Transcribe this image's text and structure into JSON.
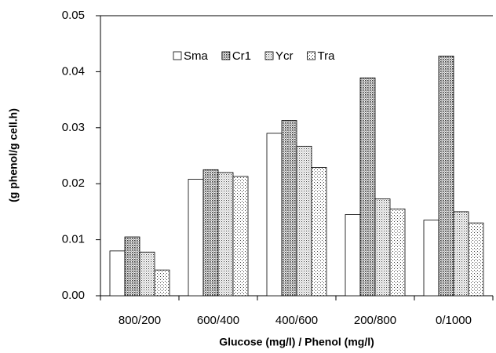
{
  "chart_data": {
    "type": "bar",
    "x_label": "Glucose (mg/l) / Phenol (mg/l)",
    "y_label": "(g phenol/g cell.h)",
    "categories": [
      "800/200",
      "600/400",
      "400/600",
      "200/800",
      "0/1000"
    ],
    "series": [
      {
        "name": "Sma",
        "color": "#ffffff",
        "pattern": "none",
        "values": [
          0.008,
          0.0208,
          0.029,
          0.0145,
          0.0135
        ]
      },
      {
        "name": "Cr1",
        "color": "#ffffff",
        "pattern": "dense-dots",
        "values": [
          0.0105,
          0.0225,
          0.0313,
          0.0389,
          0.0428
        ]
      },
      {
        "name": "Ycr",
        "color": "#ffffff",
        "pattern": "dots",
        "values": [
          0.0078,
          0.022,
          0.0267,
          0.0173,
          0.015
        ]
      },
      {
        "name": "Tra",
        "color": "#ffffff",
        "pattern": "sparse-dots",
        "values": [
          0.0046,
          0.0213,
          0.0229,
          0.0155,
          0.013
        ]
      }
    ],
    "ylim": [
      0,
      0.05
    ],
    "yticks": [
      {
        "value": 0,
        "label": "0.00"
      },
      0.01,
      0.02,
      0.03,
      0.04,
      0.05
    ],
    "grid": false,
    "legend": "top"
  }
}
